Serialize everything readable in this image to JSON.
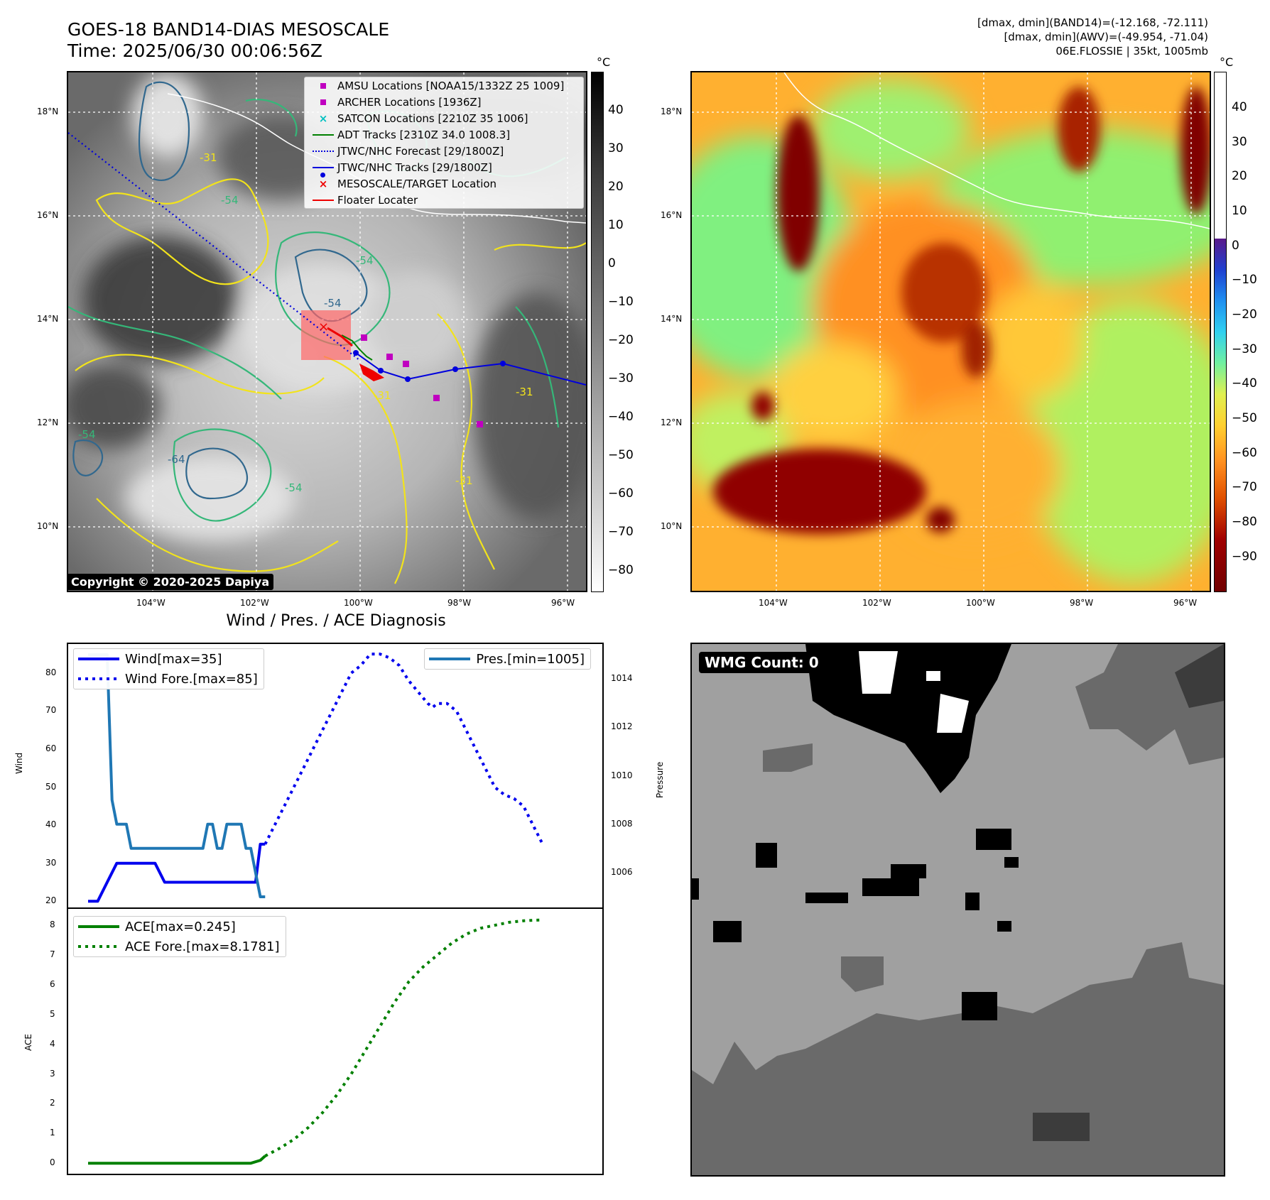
{
  "top_left": {
    "title_line1": "GOES-18 BAND14-DIAS MESOSCALE",
    "title_line2": "Time: 2025/06/30 00:06:56Z",
    "copyright": "Copyright © 2020-2025 Dapiya",
    "unit": "°C",
    "colorbar_ticks": [
      "40",
      "30",
      "20",
      "10",
      "0",
      "−10",
      "−20",
      "−30",
      "−40",
      "−50",
      "−60",
      "−70",
      "−80"
    ],
    "lat_labels": [
      "18°N",
      "16°N",
      "14°N",
      "12°N",
      "10°N"
    ],
    "lon_labels": [
      "104°W",
      "102°W",
      "100°W",
      "98°W",
      "96°W"
    ],
    "contour_labels": [
      "-54",
      "-54",
      "-54",
      "-31",
      "-31",
      "-64",
      "-54",
      "-54",
      "-31",
      "-31"
    ],
    "legend": [
      {
        "label": "AMSU Locations [NOAA15/1332Z 25 1009]",
        "symbol": "magenta-square"
      },
      {
        "label": "ARCHER Locations [1936Z]",
        "symbol": "magenta-square"
      },
      {
        "label": "SATCON Locations [2210Z 35 1006]",
        "symbol": "cyan-x"
      },
      {
        "label": "ADT Tracks [2310Z 34.0 1008.3]",
        "symbol": "green-line"
      },
      {
        "label": "JTWC/NHC Forecast [29/1800Z]",
        "symbol": "blue-dotted"
      },
      {
        "label": "JTWC/NHC Tracks [29/1800Z]",
        "symbol": "blue-line-dot"
      },
      {
        "label": "MESOSCALE/TARGET Location",
        "symbol": "red-x"
      },
      {
        "label": "Floater Locater",
        "symbol": "red-line"
      }
    ],
    "colors": {
      "amsu": "#c000c0",
      "satcon": "#00c0c0",
      "adt": "#008000",
      "jtwc": "#0000dd",
      "target": "#ee0000"
    }
  },
  "top_right": {
    "header_line1": "[dmax, dmin](BAND14)=(-12.168, -72.111)",
    "header_line2": "[dmax, dmin](AWV)=(-49.954, -71.04)",
    "header_line3": "06E.FLOSSIE | 35kt, 1005mb",
    "unit": "°C",
    "colorbar_ticks": [
      "40",
      "30",
      "20",
      "10",
      "0",
      "−10",
      "−20",
      "−30",
      "−40",
      "−50",
      "−60",
      "−70",
      "−80",
      "−90"
    ],
    "lat_labels": [
      "18°N",
      "16°N",
      "14°N",
      "12°N",
      "10°N"
    ],
    "lon_labels": [
      "104°W",
      "102°W",
      "100°W",
      "98°W",
      "96°W"
    ]
  },
  "bottom_left": {
    "title": "Wind / Pres. / ACE Diagnosis",
    "wind_ylabel": "Wind",
    "pres_ylabel": "Pressure",
    "ace_ylabel": "ACE",
    "legend_wind": "Wind[max=35]",
    "legend_wind_fore": "Wind Fore.[max=85]",
    "legend_pres": "Pres.[min=1005]",
    "legend_ace": "ACE[max=0.245]",
    "legend_ace_fore": "ACE Fore.[max=8.1781]"
  },
  "bottom_right": {
    "badge": "WMG Count: 0"
  },
  "chart_data": [
    {
      "type": "line",
      "panel": "wind-pressure",
      "x_index_range": [
        0,
        46
      ],
      "series": [
        {
          "name": "Wind[max=35]",
          "axis": "left",
          "color": "#0000ee",
          "style": "solid",
          "x": [
            0,
            2,
            4,
            6,
            8,
            10,
            12,
            14,
            16,
            18,
            20,
            22,
            24,
            26,
            28,
            30,
            32,
            34,
            35,
            36,
            37
          ],
          "y": [
            20,
            20,
            25,
            30,
            30,
            30,
            30,
            30,
            25,
            25,
            25,
            25,
            25,
            25,
            25,
            25,
            25,
            25,
            25,
            35,
            35
          ]
        },
        {
          "name": "Wind Fore.[max=85]",
          "axis": "left",
          "color": "#0000ee",
          "style": "dotted",
          "x": [
            37,
            39,
            41,
            43,
            45,
            47,
            49,
            51,
            53,
            55,
            57,
            59,
            61,
            63,
            65,
            67,
            69,
            71,
            72,
            73,
            75,
            77,
            79,
            81,
            83,
            85,
            87,
            89,
            91,
            93,
            95
          ],
          "y": [
            35,
            40,
            45,
            50,
            55,
            60,
            65,
            70,
            75,
            80,
            82,
            85,
            85,
            84,
            82,
            78,
            75,
            72,
            71,
            72,
            72,
            70,
            65,
            60,
            55,
            50,
            48,
            47,
            45,
            40,
            35
          ]
        },
        {
          "name": "Pres.[min=1005]",
          "axis": "right",
          "color": "#1f77b4",
          "style": "solid",
          "x": [
            0,
            1,
            2,
            3,
            4,
            5,
            6,
            7,
            8,
            9,
            10,
            11,
            12,
            13,
            14,
            15,
            16,
            17,
            18,
            19,
            20,
            21,
            22,
            23,
            24,
            25,
            26,
            27,
            28,
            29,
            30,
            31,
            32,
            33,
            34,
            35,
            36,
            37
          ],
          "y": [
            1015,
            1015,
            1015,
            1015,
            1015,
            1009,
            1008,
            1008,
            1008,
            1007,
            1007,
            1007,
            1007,
            1007,
            1007,
            1007,
            1007,
            1007,
            1007,
            1007,
            1007,
            1007,
            1007,
            1007,
            1007,
            1008,
            1008,
            1007,
            1007,
            1008,
            1008,
            1008,
            1008,
            1007,
            1007,
            1006,
            1005,
            1005
          ]
        }
      ],
      "ylim_left": [
        18,
        88
      ],
      "ylim_right": [
        1004.5,
        1015.5
      ],
      "yticks_left": [
        20,
        30,
        40,
        50,
        60,
        70,
        80
      ],
      "yticks_right": [
        1006,
        1008,
        1010,
        1012,
        1014
      ]
    },
    {
      "type": "line",
      "panel": "ace",
      "series": [
        {
          "name": "ACE[max=0.245]",
          "color": "#008000",
          "style": "solid",
          "x": [
            0,
            4,
            8,
            12,
            16,
            20,
            24,
            28,
            32,
            34,
            36,
            37
          ],
          "y": [
            0,
            0,
            0,
            0,
            0,
            0,
            0,
            0,
            0,
            0,
            0.1,
            0.245
          ]
        },
        {
          "name": "ACE Fore.[max=8.1781]",
          "color": "#008000",
          "style": "dotted",
          "x": [
            37,
            40,
            43,
            46,
            49,
            52,
            55,
            58,
            61,
            64,
            67,
            70,
            73,
            76,
            79,
            82,
            85,
            88,
            91,
            93,
            95
          ],
          "y": [
            0.245,
            0.5,
            0.8,
            1.2,
            1.7,
            2.3,
            3.0,
            3.8,
            4.6,
            5.4,
            6.1,
            6.6,
            7.0,
            7.4,
            7.7,
            7.9,
            8.0,
            8.1,
            8.15,
            8.17,
            8.1781
          ]
        }
      ],
      "ylim": [
        -0.4,
        8.6
      ],
      "yticks": [
        0,
        1,
        2,
        3,
        4,
        5,
        6,
        7,
        8
      ]
    }
  ]
}
